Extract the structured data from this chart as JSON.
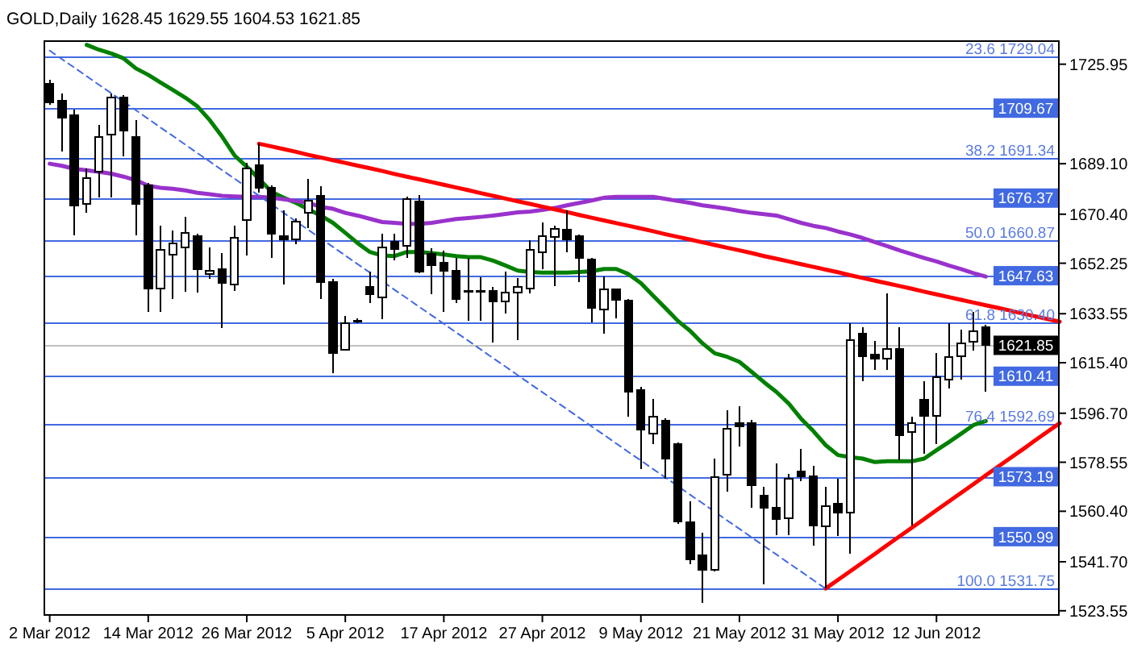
{
  "chart_data": {
    "type": "candlestick",
    "title": "GOLD,Daily 1628.45 1629.55 1604.53 1621.85",
    "categories": [
      "2 Mar 2012",
      null,
      null,
      null,
      null,
      null,
      null,
      null,
      "14 Mar 2012",
      null,
      null,
      null,
      null,
      null,
      null,
      null,
      "26 Mar 2012",
      null,
      null,
      null,
      null,
      null,
      null,
      null,
      "5 Apr 2012",
      null,
      null,
      null,
      null,
      null,
      null,
      null,
      "17 Apr 2012",
      null,
      null,
      null,
      null,
      null,
      null,
      null,
      "27 Apr 2012",
      null,
      null,
      null,
      null,
      null,
      null,
      null,
      "9 May 2012",
      null,
      null,
      null,
      null,
      null,
      null,
      null,
      "21 May 2012",
      null,
      null,
      null,
      null,
      null,
      null,
      null,
      "31 May 2012",
      null,
      null,
      null,
      null,
      null,
      null,
      null,
      "12 Jun 2012",
      null,
      null,
      null,
      null,
      null,
      null,
      null,
      null,
      null,
      null
    ],
    "ohlc": [
      [
        1718.8,
        1720.1,
        1710.8,
        1711.8
      ],
      [
        1712.5,
        1715.1,
        1693.5,
        1706.2
      ],
      [
        1706.9,
        1709.0,
        1662.5,
        1673.7
      ],
      [
        1674.2,
        1687.2,
        1670.9,
        1683.9
      ],
      [
        1686.1,
        1703.4,
        1676.5,
        1699.1
      ],
      [
        1700.0,
        1715.1,
        1676.5,
        1713.6
      ],
      [
        1713.6,
        1714.5,
        1691.9,
        1701.5
      ],
      [
        1699.1,
        1705.2,
        1662.5,
        1674.2
      ],
      [
        1681.1,
        1682.0,
        1634.1,
        1643.0
      ],
      [
        1643.0,
        1666.2,
        1634.1,
        1657.3
      ],
      [
        1655.5,
        1664.4,
        1638.9,
        1659.7
      ],
      [
        1658.2,
        1669.4,
        1641.7,
        1663.5
      ],
      [
        1662.2,
        1663.1,
        1641.5,
        1649.9
      ],
      [
        1648.2,
        1658.2,
        1646.4,
        1649.5
      ],
      [
        1649.9,
        1656.0,
        1628.2,
        1644.9
      ],
      [
        1644.3,
        1666.2,
        1642.1,
        1661.6
      ],
      [
        1668.1,
        1689.5,
        1655.1,
        1687.2
      ],
      [
        1688.5,
        1696.5,
        1678.3,
        1680.2
      ],
      [
        1680.2,
        1681.1,
        1654.2,
        1663.1
      ],
      [
        1662.2,
        1671.8,
        1644.5,
        1661.2
      ],
      [
        1661.2,
        1668.7,
        1659.4,
        1667.5
      ],
      [
        1670.9,
        1683.5,
        1665.3,
        1675.5
      ],
      [
        1677.2,
        1680.7,
        1638.9,
        1645.2
      ],
      [
        1645.4,
        1646.4,
        1611.5,
        1618.9
      ],
      [
        1620.2,
        1632.8,
        1619.9,
        1630.0
      ],
      [
        1630.6,
        1631.7,
        1630.0,
        1630.9
      ],
      [
        1643.6,
        1649.0,
        1637.4,
        1640.8
      ],
      [
        1639.7,
        1663.1,
        1631.5,
        1658.2
      ],
      [
        1660.1,
        1663.1,
        1653.2,
        1657.5
      ],
      [
        1658.8,
        1676.8,
        1654.2,
        1676.1
      ],
      [
        1675.2,
        1677.4,
        1648.6,
        1649.0
      ],
      [
        1655.6,
        1657.9,
        1640.8,
        1651.4
      ],
      [
        1652.3,
        1656.9,
        1634.1,
        1649.5
      ],
      [
        1649.5,
        1654.2,
        1637.4,
        1638.9
      ],
      [
        1642.1,
        1654.2,
        1630.9,
        1642.1
      ],
      [
        1642.1,
        1647.1,
        1630.9,
        1642.1
      ],
      [
        1642.1,
        1643.4,
        1622.9,
        1638.0
      ],
      [
        1638.0,
        1649.0,
        1633.7,
        1641.5
      ],
      [
        1641.5,
        1646.7,
        1623.9,
        1643.4
      ],
      [
        1643.0,
        1660.7,
        1641.2,
        1657.3
      ],
      [
        1656.4,
        1667.2,
        1650.1,
        1662.2
      ],
      [
        1661.9,
        1666.2,
        1643.9,
        1664.9
      ],
      [
        1664.6,
        1671.8,
        1656.4,
        1661.2
      ],
      [
        1662.2,
        1662.9,
        1645.4,
        1654.2
      ],
      [
        1653.6,
        1654.2,
        1630.4,
        1635.6
      ],
      [
        1635.2,
        1647.5,
        1626.3,
        1642.6
      ],
      [
        1642.6,
        1643.0,
        1631.9,
        1638.6
      ],
      [
        1638.4,
        1638.9,
        1595.3,
        1604.6
      ],
      [
        1605.3,
        1606.4,
        1576.1,
        1590.6
      ],
      [
        1589.1,
        1602.1,
        1585.4,
        1595.3
      ],
      [
        1593.8,
        1594.7,
        1572.4,
        1579.9
      ],
      [
        1585.4,
        1586.0,
        1555.7,
        1556.6
      ],
      [
        1556.3,
        1564.1,
        1540.9,
        1542.7
      ],
      [
        1544.0,
        1552.5,
        1526.5,
        1538.6
      ],
      [
        1538.6,
        1579.9,
        1538.1,
        1573.0
      ],
      [
        1573.9,
        1597.9,
        1567.8,
        1591.0
      ],
      [
        1592.9,
        1599.4,
        1584.5,
        1591.9
      ],
      [
        1592.9,
        1594.2,
        1561.8,
        1570.0
      ],
      [
        1566.3,
        1569.6,
        1533.4,
        1561.8
      ],
      [
        1561.8,
        1578.0,
        1551.4,
        1557.6
      ],
      [
        1557.9,
        1574.3,
        1551.4,
        1572.4
      ],
      [
        1575.2,
        1583.6,
        1571.5,
        1573.4
      ],
      [
        1573.4,
        1577.1,
        1547.7,
        1555.2
      ],
      [
        1554.8,
        1569.6,
        1531.75,
        1562.2
      ],
      [
        1563.1,
        1572.4,
        1551.1,
        1560.0
      ],
      [
        1560.0,
        1630.0,
        1544.6,
        1623.9
      ],
      [
        1626.3,
        1628.5,
        1608.7,
        1617.9
      ],
      [
        1618.3,
        1623.5,
        1612.7,
        1617.0
      ],
      [
        1617.0,
        1641.2,
        1612.7,
        1620.4
      ],
      [
        1620.4,
        1628.5,
        1579.3,
        1588.6
      ],
      [
        1589.7,
        1595.3,
        1555.1,
        1592.9
      ],
      [
        1601.6,
        1608.7,
        1581.7,
        1595.6
      ],
      [
        1595.6,
        1618.9,
        1585.4,
        1610.1
      ],
      [
        1609.2,
        1630.0,
        1605.9,
        1617.6
      ],
      [
        1617.9,
        1627.6,
        1609.0,
        1622.6
      ],
      [
        1623.1,
        1634.1,
        1619.8,
        1627.2
      ],
      [
        1628.45,
        1629.55,
        1604.53,
        1621.85
      ],
      null,
      null,
      null,
      null,
      null,
      null
    ],
    "series": [
      {
        "type": "line",
        "color": "#008000",
        "values": [
          null,
          null,
          null,
          1733.1,
          1731.3,
          1729.9,
          1728.1,
          1724.4,
          1722.0,
          1719.2,
          1716.4,
          1713.6,
          1710.3,
          1705.2,
          1699.1,
          1692.2,
          1688.0,
          1683.5,
          1678.7,
          1676.5,
          1674.6,
          1672.2,
          1669.9,
          1667.2,
          1663.5,
          1659.7,
          1656.4,
          1655.1,
          1654.9,
          1656.4,
          1656.4,
          1656.0,
          1655.5,
          1654.9,
          1654.5,
          1654.5,
          1653.2,
          1651.4,
          1649.5,
          1649.0,
          1648.8,
          1648.8,
          1648.8,
          1649.0,
          1649.3,
          1650.1,
          1650.1,
          1648.2,
          1644.9,
          1640.2,
          1635.6,
          1630.9,
          1627.2,
          1622.6,
          1618.9,
          1617.6,
          1615.7,
          1612.0,
          1608.2,
          1604.6,
          1600.3,
          1594.7,
          1590.1,
          1584.9,
          1581.2,
          1580.4,
          1579.9,
          1578.6,
          1578.9,
          1578.9,
          1578.9,
          1579.9,
          1583.0,
          1586.0,
          1589.1,
          1592.3,
          1593.8,
          null,
          null,
          null,
          null,
          null,
          null
        ]
      },
      {
        "type": "line",
        "color": "#9932cc",
        "values": [
          1689.1,
          1688.3,
          1687.2,
          1686.7,
          1686.1,
          1685.4,
          1684.3,
          1683.0,
          1680.9,
          1680.2,
          1679.8,
          1679.2,
          1678.3,
          1677.8,
          1677.2,
          1677.0,
          1676.8,
          1676.8,
          1676.5,
          1675.9,
          1675.3,
          1674.6,
          1673.1,
          1672.4,
          1670.9,
          1669.9,
          1668.7,
          1667.5,
          1667.2,
          1666.8,
          1666.8,
          1667.2,
          1667.9,
          1668.6,
          1669.0,
          1669.4,
          1669.9,
          1670.5,
          1671.1,
          1671.4,
          1672.0,
          1672.7,
          1673.7,
          1674.6,
          1675.5,
          1676.5,
          1676.8,
          1676.8,
          1676.8,
          1676.8,
          1676.1,
          1675.3,
          1674.6,
          1673.7,
          1673.1,
          1672.4,
          1671.6,
          1670.9,
          1670.4,
          1669.9,
          1668.6,
          1667.2,
          1666.1,
          1665.3,
          1664.0,
          1662.9,
          1661.6,
          1660.1,
          1658.6,
          1657.0,
          1655.6,
          1654.2,
          1652.9,
          1651.4,
          1650.1,
          1648.6,
          1647.3,
          null,
          null,
          null,
          null,
          null,
          null
        ]
      },
      {
        "type": "line",
        "color": "#ff0000",
        "values": [
          null,
          null,
          null,
          null,
          null,
          null,
          null,
          null,
          null,
          null,
          null,
          null,
          null,
          null,
          null,
          null,
          null,
          1696.5,
          1695.5,
          1694.5,
          1693.5,
          1692.4,
          1691.4,
          1690.4,
          1689.4,
          1688.4,
          1687.4,
          1686.4,
          1685.3,
          1684.3,
          1683.3,
          1682.3,
          1681.3,
          1680.3,
          1679.3,
          1678.2,
          1677.2,
          1676.2,
          1675.2,
          1674.2,
          1673.2,
          1672.2,
          1671.2,
          1670.1,
          1669.1,
          1668.1,
          1667.1,
          1666.1,
          1665.1,
          1664.1,
          1663.0,
          1662.0,
          1661.0,
          1660.0,
          1659.0,
          1658.0,
          1657.0,
          1656.0,
          1654.9,
          1653.9,
          1652.9,
          1651.9,
          1650.9,
          1649.9,
          1648.9,
          1647.8,
          1646.8,
          1645.8,
          1644.8,
          1643.8,
          1642.8,
          1641.7,
          1640.7,
          1639.7,
          1638.7,
          1637.7,
          1636.7,
          1635.7,
          1634.7,
          1633.6,
          1632.6,
          1631.6,
          1630.6
        ]
      },
      {
        "type": "line",
        "color": "#ff0000",
        "values": [
          null,
          null,
          null,
          null,
          null,
          null,
          null,
          null,
          null,
          null,
          null,
          null,
          null,
          null,
          null,
          null,
          null,
          null,
          null,
          null,
          null,
          null,
          null,
          null,
          null,
          null,
          null,
          null,
          null,
          null,
          null,
          null,
          null,
          null,
          null,
          null,
          null,
          null,
          null,
          null,
          null,
          null,
          null,
          null,
          null,
          null,
          null,
          null,
          null,
          null,
          null,
          null,
          null,
          null,
          null,
          null,
          null,
          null,
          null,
          null,
          null,
          null,
          null,
          1531.8,
          1535.0,
          1538.2,
          1541.4,
          1544.6,
          1547.9,
          1551.1,
          1554.3,
          1557.5,
          1560.8,
          1564.0,
          1567.2,
          1570.4,
          1573.7,
          1576.9,
          1580.1,
          1583.3,
          1586.6,
          1589.8,
          1593.0
        ]
      },
      {
        "type": "line",
        "color": "#4169e1",
        "line_style": "dashed",
        "values": [
          1731.0,
          1727.8,
          1724.7,
          1721.5,
          1718.3,
          1715.2,
          1712.0,
          1708.9,
          1705.7,
          1702.5,
          1699.4,
          1696.2,
          1693.0,
          1689.9,
          1686.7,
          1683.6,
          1680.4,
          1677.2,
          1674.1,
          1670.9,
          1667.7,
          1664.6,
          1661.4,
          1658.3,
          1655.1,
          1651.9,
          1648.8,
          1645.6,
          1642.4,
          1639.3,
          1636.1,
          1633.0,
          1629.8,
          1626.6,
          1623.5,
          1620.3,
          1617.1,
          1614.0,
          1610.8,
          1607.6,
          1604.5,
          1601.3,
          1598.2,
          1595.0,
          1591.8,
          1588.7,
          1585.5,
          1582.3,
          1579.2,
          1576.0,
          1572.9,
          1569.7,
          1566.5,
          1563.4,
          1560.2,
          1557.0,
          1553.9,
          1550.7,
          1547.5,
          1544.4,
          1541.2,
          1538.1,
          1534.9,
          1531.7,
          null,
          null,
          null,
          null,
          null,
          null,
          null,
          null,
          null,
          null,
          null,
          null,
          null,
          null,
          null,
          null,
          null,
          null,
          null
        ]
      }
    ],
    "ylim": [
      1521.7,
      1734.8
    ],
    "yticks": [
      1725.95,
      {
        "value": 1689.1,
        "label": "1689.10"
      },
      {
        "value": 1670.4,
        "label": "1670.40"
      },
      1652.25,
      1633.55,
      {
        "value": 1615.4,
        "label": "1615.40"
      },
      {
        "value": 1596.7,
        "label": "1596.70"
      },
      1578.55,
      {
        "value": 1560.4,
        "label": "1560.40"
      },
      {
        "value": 1541.7,
        "label": "1541.70"
      },
      1523.55
    ],
    "ref_lines": [
      {
        "axis": "y",
        "value": 1729.04,
        "color": "#4169e1"
      },
      {
        "axis": "y",
        "value": 1709.67,
        "label": "1709.67",
        "color": "#4169e1"
      },
      {
        "axis": "y",
        "value": 1691.34,
        "color": "#4169e1"
      },
      {
        "axis": "y",
        "value": 1676.37,
        "label": "1676.37",
        "color": "#4169e1"
      },
      {
        "axis": "y",
        "value": 1660.87,
        "color": "#4169e1"
      },
      {
        "axis": "y",
        "value": 1647.63,
        "label": "1647.63",
        "color": "#4169e1"
      },
      {
        "axis": "y",
        "value": 1630.4,
        "color": "#4169e1"
      },
      {
        "axis": "y",
        "value": 1621.85,
        "label": "1621.85",
        "color": "#c0c0c0"
      },
      {
        "axis": "y",
        "value": 1610.41,
        "label": "1610.41",
        "color": "#4169e1"
      },
      {
        "axis": "y",
        "value": 1592.69,
        "color": "#4169e1"
      },
      {
        "axis": "y",
        "value": 1573.19,
        "label": "1573.19",
        "color": "#4169e1"
      },
      {
        "axis": "y",
        "value": 1550.99,
        "label": "1550.99",
        "color": "#4169e1"
      },
      {
        "axis": "y",
        "value": 1531.75,
        "color": "#4169e1"
      }
    ],
    "annotations": [
      {
        "text": "23.6 1729.04",
        "y": 1729.04
      },
      {
        "text": "38.2 1691.34",
        "y": 1691.34
      },
      {
        "text": "50.0 1660.87",
        "y": 1660.87
      },
      {
        "text": "61.8 1630.40",
        "y": 1630.4
      },
      {
        "text": "76.4 1592.69",
        "y": 1592.69
      },
      {
        "text": "100.0 1531.75",
        "y": 1531.75
      }
    ]
  }
}
